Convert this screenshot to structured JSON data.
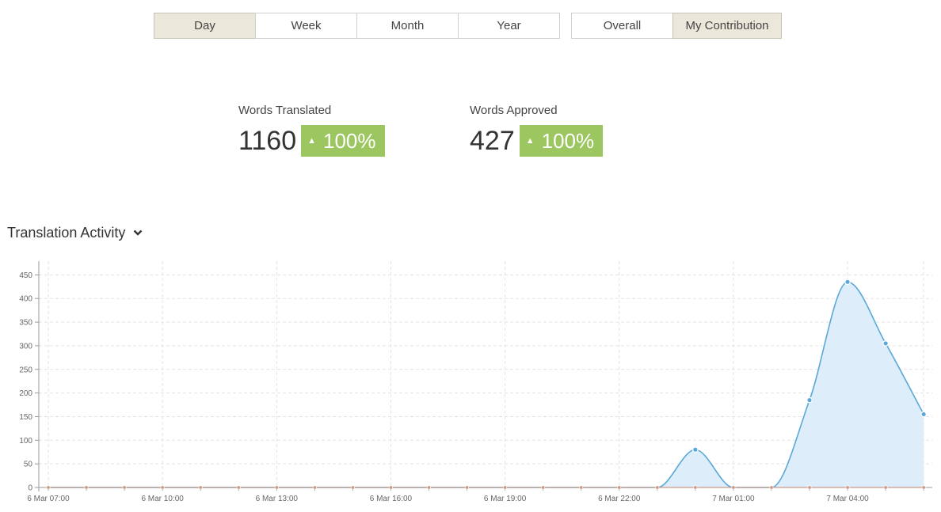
{
  "range_buttons": [
    {
      "label": "Day",
      "active": true
    },
    {
      "label": "Week",
      "active": false
    },
    {
      "label": "Month",
      "active": false
    },
    {
      "label": "Year",
      "active": false
    }
  ],
  "scope_buttons": [
    {
      "label": "Overall",
      "active": false
    },
    {
      "label": "My Contribution",
      "active": true
    }
  ],
  "stats": {
    "translated": {
      "label": "Words Translated",
      "value": "1160",
      "change": "100%"
    },
    "approved": {
      "label": "Words Approved",
      "value": "427",
      "change": "100%"
    }
  },
  "section": {
    "title": "Translation Activity",
    "icon": "chevron-down-icon"
  },
  "colors": {
    "badge": "#9cc65f",
    "active_button": "#ebe7da",
    "series_line": "#5aa9d9",
    "series_fill": "#ddedf9",
    "zero_line": "#c99a86"
  },
  "chart_data": {
    "type": "area",
    "x": [
      "6 Mar 07:00",
      "6 Mar 08:00",
      "6 Mar 09:00",
      "6 Mar 10:00",
      "6 Mar 11:00",
      "6 Mar 12:00",
      "6 Mar 13:00",
      "6 Mar 14:00",
      "6 Mar 15:00",
      "6 Mar 16:00",
      "6 Mar 17:00",
      "6 Mar 18:00",
      "6 Mar 19:00",
      "6 Mar 20:00",
      "6 Mar 21:00",
      "6 Mar 22:00",
      "6 Mar 23:00",
      "7 Mar 00:00",
      "7 Mar 01:00",
      "7 Mar 02:00",
      "7 Mar 03:00",
      "7 Mar 04:00",
      "7 Mar 05:00",
      "7 Mar 06:00"
    ],
    "x_tick_labels": [
      "6 Mar 07:00",
      "6 Mar 10:00",
      "6 Mar 13:00",
      "6 Mar 16:00",
      "6 Mar 19:00",
      "6 Mar 22:00",
      "7 Mar 01:00",
      "7 Mar 04:00"
    ],
    "y_ticks": [
      0,
      50,
      100,
      150,
      200,
      250,
      300,
      350,
      400,
      450
    ],
    "ylim": [
      0,
      475
    ],
    "grid": true,
    "series": [
      {
        "values": [
          0,
          0,
          0,
          0,
          0,
          0,
          0,
          0,
          0,
          0,
          0,
          0,
          0,
          0,
          0,
          0,
          0,
          80,
          0,
          0,
          185,
          435,
          305,
          155
        ]
      },
      {
        "values": [
          0,
          0,
          0,
          0,
          0,
          0,
          0,
          0,
          0,
          0,
          0,
          0,
          0,
          0,
          0,
          0,
          0,
          0,
          0,
          0,
          0,
          0,
          0,
          0
        ]
      }
    ]
  }
}
